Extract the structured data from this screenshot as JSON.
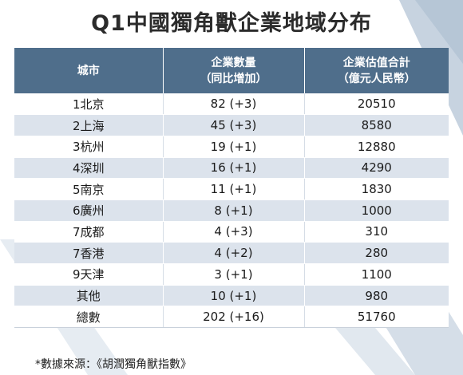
{
  "title": "Q1中國獨角獸企業地域分布",
  "header": {
    "city": "城市",
    "count_line1": "企業數量",
    "count_line2": "（同比增加）",
    "value_line1": "企業估值合計",
    "value_line2": "（億元人民幣）"
  },
  "rows": [
    {
      "city": "1北京",
      "count": "82 (+3)",
      "value": "20510"
    },
    {
      "city": "2上海",
      "count": "45 (+3)",
      "value": "8580"
    },
    {
      "city": "3杭州",
      "count": "19 (+1)",
      "value": "12880"
    },
    {
      "city": "4深圳",
      "count": "16 (+1)",
      "value": "4290"
    },
    {
      "city": "5南京",
      "count": "11 (+1)",
      "value": "1830"
    },
    {
      "city": "6廣州",
      "count": "8 (+1)",
      "value": "1000"
    },
    {
      "city": "7成都",
      "count": "4 (+3)",
      "value": "310"
    },
    {
      "city": "7香港",
      "count": "4 (+2)",
      "value": "280"
    },
    {
      "city": "9天津",
      "count": "3 (+1)",
      "value": "1100"
    },
    {
      "city": "其他",
      "count": "10 (+1)",
      "value": "980"
    },
    {
      "city": "總數",
      "count": "202 (+16)",
      "value": "51760"
    }
  ],
  "source": "*數據來源：《胡潤獨角獸指數》",
  "colors": {
    "header_bg": "#4f6e8b",
    "stripe_row": "#dce3ec",
    "background_stripes": "#c7d3e0"
  },
  "chart_data": {
    "type": "table",
    "title": "Q1中國獨角獸企業地域分布",
    "columns": [
      "城市",
      "企業數量（同比增加）",
      "企業估值合計（億元人民幣）"
    ],
    "rows": [
      [
        "1北京",
        "82 (+3)",
        20510
      ],
      [
        "2上海",
        "45 (+3)",
        8580
      ],
      [
        "3杭州",
        "19 (+1)",
        12880
      ],
      [
        "4深圳",
        "16 (+1)",
        4290
      ],
      [
        "5南京",
        "11 (+1)",
        1830
      ],
      [
        "6廣州",
        "8 (+1)",
        1000
      ],
      [
        "7成都",
        "4 (+3)",
        310
      ],
      [
        "7香港",
        "4 (+2)",
        280
      ],
      [
        "9天津",
        "3 (+1)",
        1100
      ],
      [
        "其他",
        "10 (+1)",
        980
      ],
      [
        "總數",
        "202 (+16)",
        51760
      ]
    ]
  }
}
